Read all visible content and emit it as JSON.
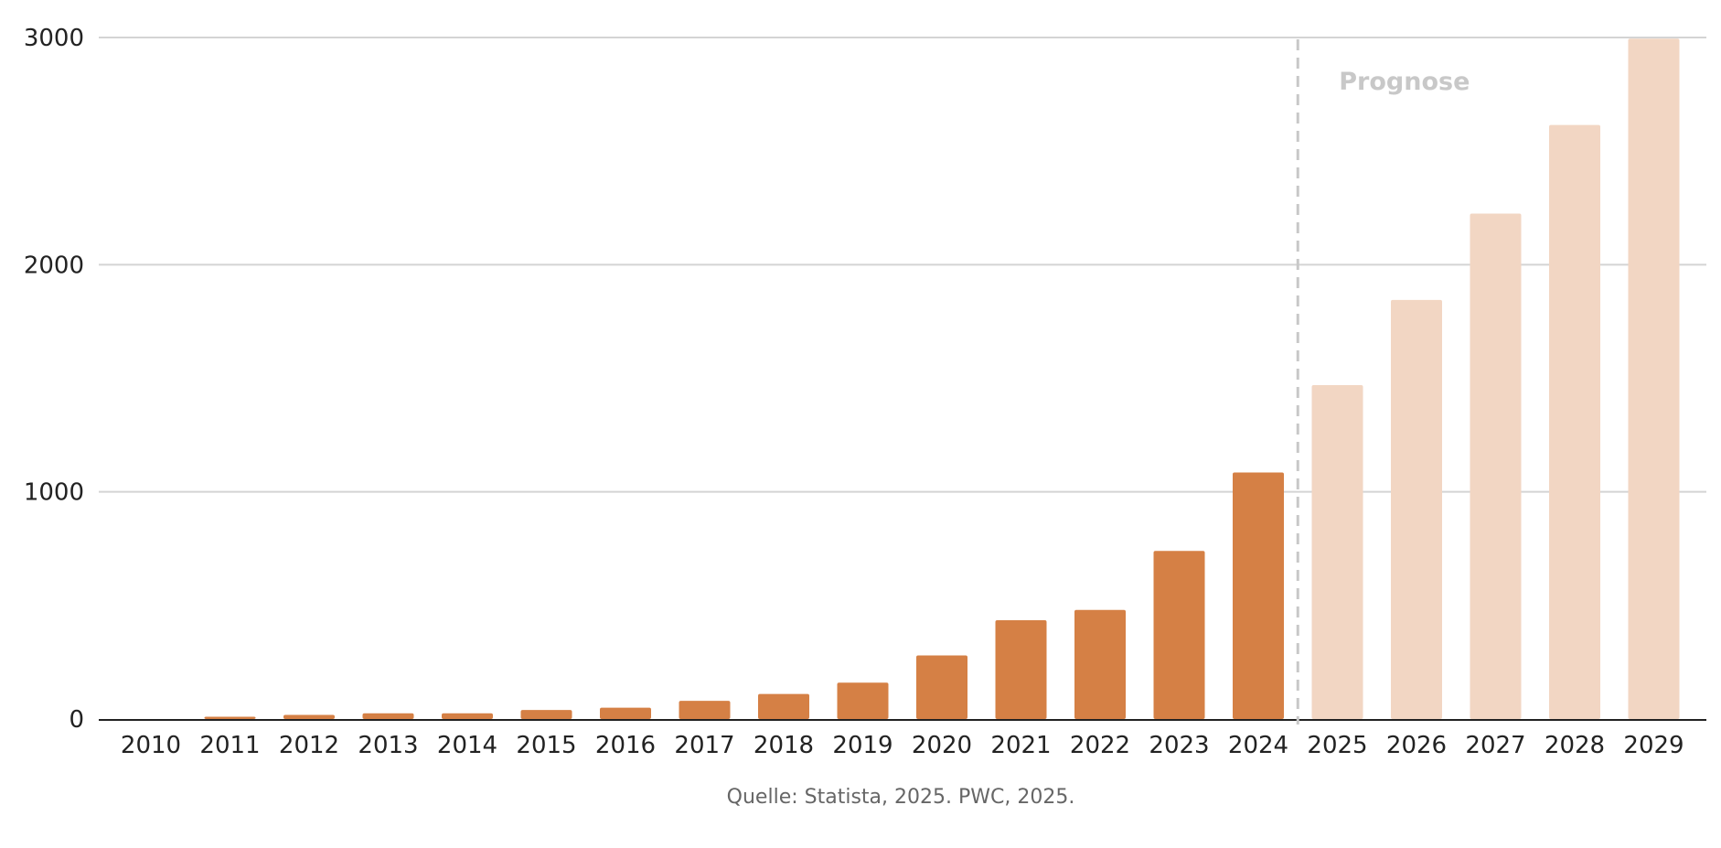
{
  "chart_data": {
    "type": "bar",
    "categories": [
      "2010",
      "2011",
      "2012",
      "2013",
      "2014",
      "2015",
      "2016",
      "2017",
      "2018",
      "2019",
      "2020",
      "2021",
      "2022",
      "2023",
      "2024",
      "2025",
      "2026",
      "2027",
      "2028",
      "2029"
    ],
    "values": [
      0,
      10,
      18,
      25,
      25,
      40,
      50,
      80,
      110,
      160,
      280,
      435,
      480,
      740,
      1085,
      1470,
      1845,
      2225,
      2615,
      2995
    ],
    "forecast_from": "2025",
    "forecast_label": "Prognose",
    "ylim": [
      0,
      3000
    ],
    "yticks": [
      0,
      1000,
      2000,
      3000
    ],
    "grid": true,
    "source": "Quelle: Statista, 2025. PWC, 2025.",
    "colors": {
      "actual": "#d58045",
      "forecast": "#f2d6c3",
      "grid": "#d4d4d4",
      "axis": "#222222",
      "divider": "#c8c8c8"
    }
  }
}
